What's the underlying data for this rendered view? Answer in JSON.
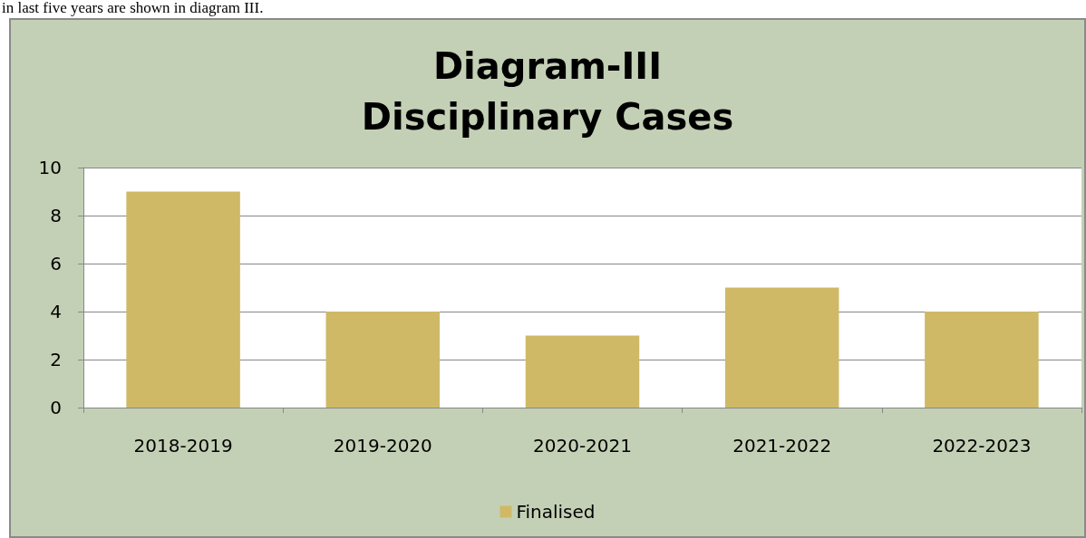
{
  "chart_data": {
    "type": "bar",
    "title": "Diagram-III\nDisciplinary Cases",
    "annotations": [
      "in last five years are shown in diagram III."
    ],
    "categories": [
      "2018-2019",
      "2019-2020",
      "2020-2021",
      "2021-2022",
      "2022-2023"
    ],
    "series": [
      {
        "name": "Finalised",
        "color": "#cfb966",
        "values": [
          9,
          4,
          3,
          5,
          4
        ]
      }
    ],
    "ylim": [
      0,
      10
    ],
    "yticks": [
      0,
      2,
      4,
      6,
      8,
      10
    ],
    "grid": "y",
    "legend": "bottom"
  }
}
